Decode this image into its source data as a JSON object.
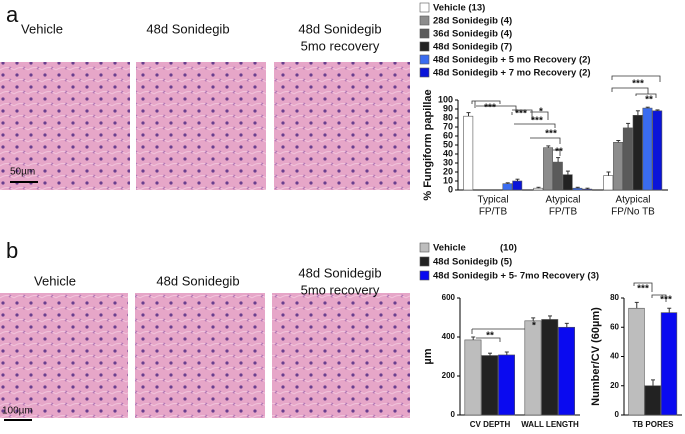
{
  "panels": [
    {
      "label": "a",
      "captions": [
        [
          "Vehicle"
        ],
        [
          "48d Sonidegib"
        ],
        [
          "48d Sonidegib",
          "5mo recovery"
        ]
      ],
      "scale_bar": "50µm"
    },
    {
      "label": "b",
      "captions": [
        [
          "Vehicle"
        ],
        [
          "48d Sonidegib"
        ],
        [
          "48d Sonidegib",
          "5mo recovery"
        ]
      ],
      "scale_bar": "100µm"
    }
  ],
  "chart_data": [
    {
      "type": "bar",
      "ylabel": "% Fungiform papillae",
      "categories": [
        [
          "Typical",
          "FP/TB"
        ],
        [
          "Atypical",
          "FP/TB"
        ],
        [
          "Atypical",
          "FP/No TB"
        ]
      ],
      "ylim": [
        0,
        100
      ],
      "yticks": [
        0,
        10,
        20,
        30,
        40,
        50,
        60,
        70,
        80,
        90,
        100
      ],
      "series": [
        {
          "name": "Vehicle  (13)",
          "color": "#ffffff",
          "values": [
            82,
            2,
            16
          ],
          "errors": [
            4,
            1,
            4
          ]
        },
        {
          "name": "28d Sonidegib (4)",
          "color": "#8c8c8c",
          "values": [
            0,
            47,
            53
          ],
          "errors": [
            0,
            2,
            2
          ]
        },
        {
          "name": "36d Sonidegib (4)",
          "color": "#5a5a5a",
          "values": [
            0,
            31,
            69
          ],
          "errors": [
            0,
            5,
            5
          ]
        },
        {
          "name": "48d Sonidegib (7)",
          "color": "#222222",
          "values": [
            0,
            17,
            83
          ],
          "errors": [
            0,
            4,
            5
          ]
        },
        {
          "name": "48d Sonidegib + 5 mo Recovery (2)",
          "color": "#3a6cf0",
          "values": [
            7,
            2,
            91
          ],
          "errors": [
            1,
            1,
            1
          ]
        },
        {
          "name": "48d Sonidegib + 7 mo Recovery (2)",
          "color": "#0a14d8",
          "values": [
            10,
            1,
            88
          ],
          "errors": [
            2,
            1,
            1
          ]
        }
      ],
      "annotations": [
        "***",
        "***",
        "*",
        "***",
        "***",
        "**",
        "***",
        "**"
      ]
    },
    {
      "type": "bar",
      "ylabel": "µm",
      "categories": [
        "CV DEPTH",
        "WALL LENGTH"
      ],
      "ylim": [
        0,
        600
      ],
      "yticks": [
        0,
        200,
        400,
        600
      ],
      "series": [
        {
          "name": "Vehicle",
          "count": "(10)",
          "color": "#bdbdbd",
          "values": [
            385,
            483
          ],
          "errors": [
            15,
            15
          ]
        },
        {
          "name": "48d Sonidegib (5)",
          "color": "#222222",
          "values": [
            305,
            490
          ],
          "errors": [
            12,
            18
          ]
        },
        {
          "name": "48d Sonidegib + 5- 7mo Recovery (3)",
          "color": "#0a0af0",
          "values": [
            308,
            450
          ],
          "errors": [
            15,
            20
          ]
        }
      ],
      "annotations": [
        "**",
        "*"
      ]
    },
    {
      "type": "bar",
      "ylabel": "Number/CV (60µm)",
      "categories": [
        "TB PORES"
      ],
      "ylim": [
        0,
        80
      ],
      "yticks": [
        0,
        20,
        40,
        60,
        80
      ],
      "series": [
        {
          "color": "#bdbdbd",
          "values": [
            73
          ],
          "errors": [
            4
          ]
        },
        {
          "color": "#222222",
          "values": [
            20
          ],
          "errors": [
            4
          ]
        },
        {
          "color": "#0a0af0",
          "values": [
            70
          ],
          "errors": [
            3
          ]
        }
      ],
      "annotations": [
        "***",
        "***"
      ]
    }
  ]
}
